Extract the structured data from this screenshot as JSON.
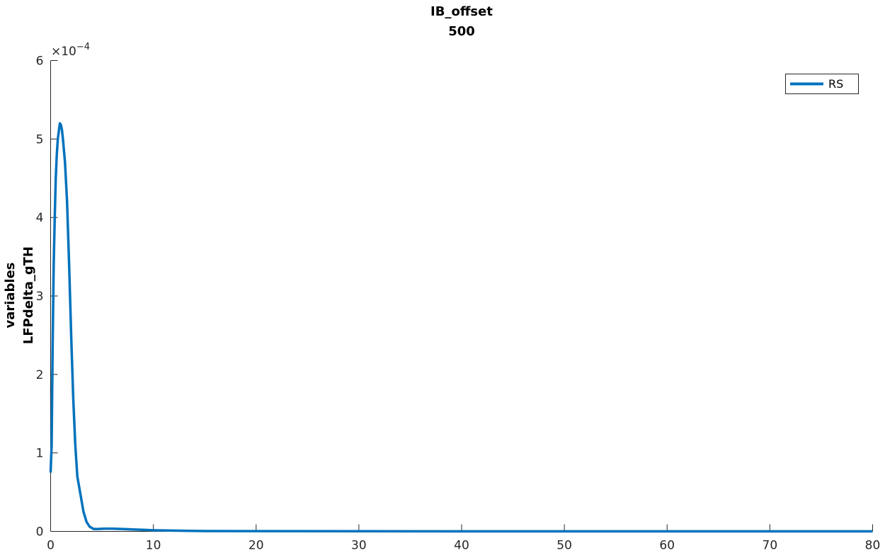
{
  "chart_data": {
    "type": "line",
    "title": [
      "IB_offset",
      "500"
    ],
    "xlabel": "",
    "ylabel": [
      "variables",
      "LFPdelta_gTH"
    ],
    "xlim": [
      0,
      80
    ],
    "ylim": [
      0,
      0.0006
    ],
    "x_ticks": [
      0,
      10,
      20,
      30,
      40,
      50,
      60,
      70,
      80
    ],
    "y_ticks": [
      0,
      1,
      2,
      3,
      4,
      5,
      6
    ],
    "y_tick_labels": [
      "0",
      "1",
      "2",
      "3",
      "4",
      "5",
      "6"
    ],
    "y_exponent_label": "×10",
    "y_exponent_power": "−4",
    "grid": false,
    "legend_position": "top-right",
    "color": "#0072BD",
    "series": [
      {
        "name": "RS",
        "x": [
          0,
          0.1,
          0.2,
          0.3,
          0.4,
          0.5,
          0.6,
          0.7,
          0.8,
          0.9,
          1.0,
          1.1,
          1.2,
          1.4,
          1.6,
          1.8,
          2.0,
          2.2,
          2.4,
          2.6,
          2.8,
          3.0,
          3.2,
          3.5,
          3.8,
          4.2,
          4.6,
          5.2,
          6.0,
          7.0,
          8.0,
          9.0,
          10.0,
          11.0,
          12.0,
          13.0,
          15.0,
          20.0,
          30.0,
          40.0,
          50.0,
          60.0,
          70.0,
          80.0
        ],
        "y": [
          7.5e-05,
          0.00011,
          0.00024,
          0.00034,
          0.0004,
          0.00045,
          0.00048,
          0.0005,
          0.00051,
          0.00052,
          0.000518,
          0.000512,
          0.0005,
          0.00047,
          0.00042,
          0.00034,
          0.00025,
          0.00017,
          0.00011,
          7e-05,
          5.5e-05,
          4e-05,
          2.5e-05,
          1.2e-05,
          6e-06,
          3e-06,
          3e-06,
          3.5e-06,
          3.5e-06,
          3e-06,
          2.5e-06,
          2e-06,
          1.5e-06,
          1.2e-06,
          1e-06,
          8e-07,
          5e-07,
          3e-07,
          2e-07,
          1e-07,
          1e-07,
          1e-07,
          1e-07,
          1e-07
        ]
      }
    ]
  }
}
